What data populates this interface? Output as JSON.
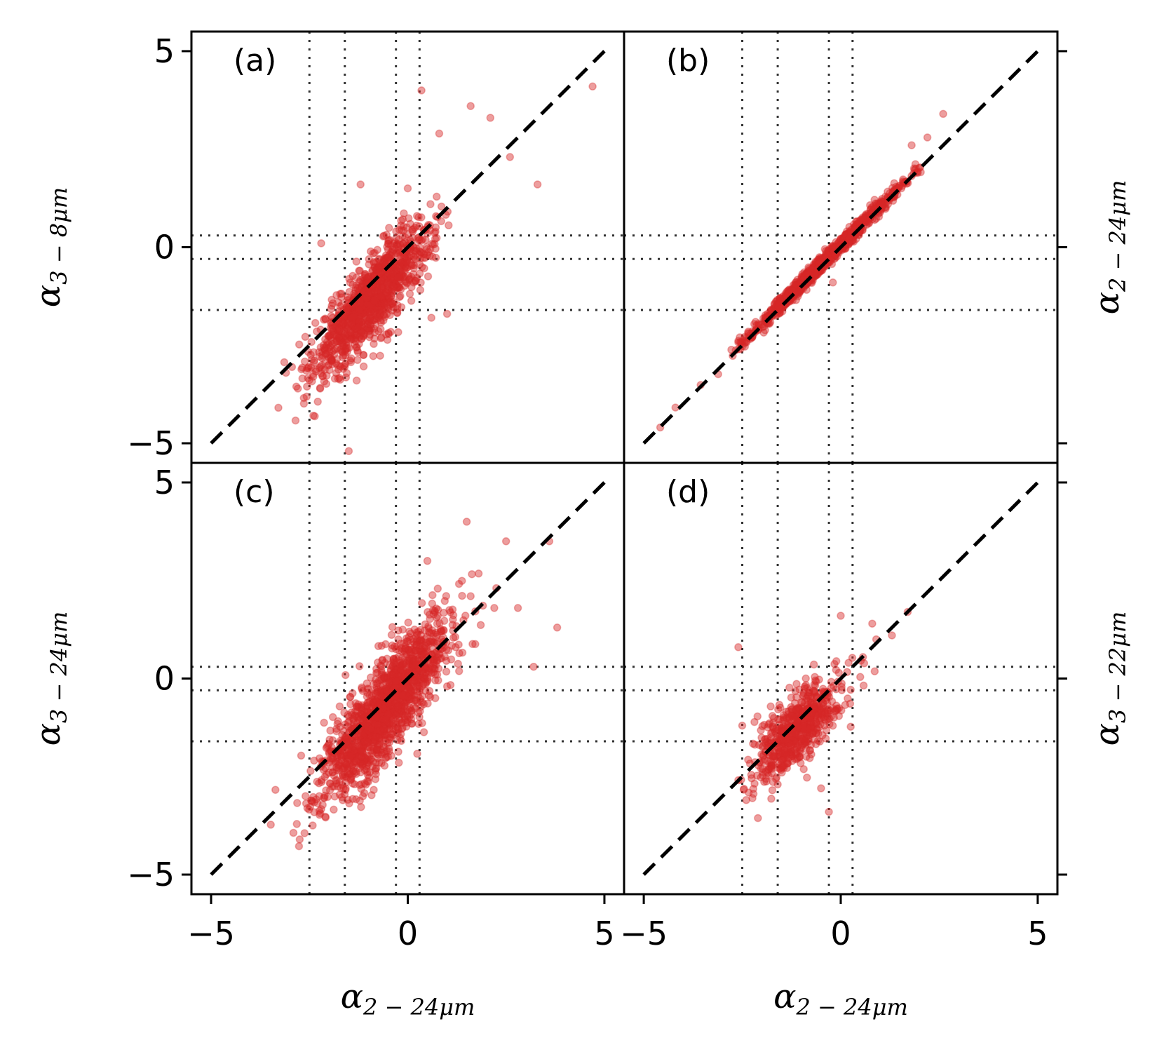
{
  "chart_data": [
    {
      "panel": "(a)",
      "type": "scatter",
      "xlabel": "",
      "ylabel": "α_{3−8μm}",
      "ylabel_base": "α",
      "ylabel_sub": "3 − 8μm",
      "ylabel_side": "left",
      "xlim": [
        -5.5,
        5.5
      ],
      "ylim": [
        -5.5,
        5.5
      ],
      "xticks": [
        -5,
        0,
        5
      ],
      "yticks": [
        -5,
        0,
        5
      ],
      "xticklabels_visible": false,
      "yticklabels_visible": true,
      "cluster": {
        "center": [
          -0.9,
          -1.3
        ],
        "spread": [
          0.75,
          0.95
        ],
        "corr": 0.85,
        "n": 1100
      },
      "points": [
        [
          4.7,
          4.1
        ],
        [
          0.35,
          4.0
        ],
        [
          1.6,
          3.6
        ],
        [
          2.1,
          3.3
        ],
        [
          2.6,
          2.3
        ],
        [
          3.3,
          1.6
        ],
        [
          -1.2,
          1.6
        ],
        [
          -2.2,
          0.1
        ],
        [
          -1.3,
          -3.4
        ],
        [
          -1.5,
          -5.2
        ],
        [
          -2.4,
          -3.3
        ],
        [
          1.0,
          -1.7
        ],
        [
          0.6,
          -1.8
        ],
        [
          0.0,
          1.5
        ],
        [
          0.8,
          2.9
        ]
      ]
    },
    {
      "panel": "(b)",
      "type": "scatter",
      "xlabel": "",
      "ylabel": "α_{2−24μm}",
      "ylabel_base": "α",
      "ylabel_sub": "2 − 24μm",
      "ylabel_side": "right",
      "xlim": [
        -5.5,
        5.5
      ],
      "ylim": [
        -5.5,
        5.5
      ],
      "xticks": [
        -5,
        0,
        5
      ],
      "yticks": [
        -5,
        0,
        5
      ],
      "xticklabels_visible": false,
      "yticklabels_visible": false,
      "cluster": {
        "center": [
          -0.4,
          -0.35
        ],
        "spread": [
          0.95,
          0.95
        ],
        "corr": 0.995,
        "n": 1100
      },
      "points": [
        [
          2.6,
          3.4
        ],
        [
          2.2,
          2.8
        ],
        [
          1.8,
          2.6
        ],
        [
          -2.4,
          -2.4
        ],
        [
          -2.1,
          -2.1
        ],
        [
          0.1,
          0.1
        ],
        [
          -0.2,
          -0.9
        ],
        [
          1.2,
          1.1
        ]
      ]
    },
    {
      "panel": "(c)",
      "type": "scatter",
      "xlabel": "α_{2−24μm}",
      "xlabel_base": "α",
      "xlabel_sub": "2 − 24μm",
      "ylabel": "α_{3−24μm}",
      "ylabel_base": "α",
      "ylabel_sub": "3 − 24μm",
      "ylabel_side": "left",
      "xlim": [
        -5.5,
        5.5
      ],
      "ylim": [
        -5.5,
        5.5
      ],
      "xticks": [
        -5,
        0,
        5
      ],
      "yticks": [
        -5,
        0,
        5
      ],
      "xtick_labels": [
        "−5",
        "0",
        "5"
      ],
      "ytick_labels": [
        "−5",
        "0",
        "5"
      ],
      "xticklabels_visible": true,
      "yticklabels_visible": true,
      "cluster": {
        "center": [
          -0.6,
          -0.8
        ],
        "spread": [
          0.85,
          1.15
        ],
        "corr": 0.84,
        "n": 1500
      },
      "points": [
        [
          1.5,
          4.0
        ],
        [
          2.5,
          3.5
        ],
        [
          3.6,
          3.5
        ],
        [
          3.8,
          1.3
        ],
        [
          3.2,
          0.3
        ],
        [
          2.8,
          1.8
        ],
        [
          -2.6,
          -3.0
        ],
        [
          0.5,
          3.0
        ],
        [
          1.0,
          -0.2
        ],
        [
          0.7,
          -0.5
        ],
        [
          2.2,
          1.8
        ]
      ]
    },
    {
      "panel": "(d)",
      "type": "scatter",
      "xlabel": "α_{2−24μm}",
      "xlabel_base": "α",
      "xlabel_sub": "2 − 24μm",
      "ylabel": "α_{3−22μm}",
      "ylabel_base": "α",
      "ylabel_sub": "3 − 22μm",
      "ylabel_side": "right",
      "xlim": [
        -5.5,
        5.5
      ],
      "ylim": [
        -5.5,
        5.5
      ],
      "xticks": [
        -5,
        0,
        5
      ],
      "yticks": [
        -5,
        0,
        5
      ],
      "xtick_labels": [
        "−5",
        "0",
        "5"
      ],
      "xticklabels_visible": true,
      "yticklabels_visible": false,
      "cluster": {
        "center": [
          -1.1,
          -1.3
        ],
        "spread": [
          0.55,
          0.65
        ],
        "corr": 0.72,
        "n": 650
      },
      "points": [
        [
          -2.6,
          0.8
        ],
        [
          -2.5,
          -1.2
        ],
        [
          -2.4,
          -3.1
        ],
        [
          -0.3,
          -3.4
        ],
        [
          -0.5,
          -2.8
        ],
        [
          -1.6,
          -2.7
        ],
        [
          0.0,
          1.6
        ],
        [
          0.8,
          1.4
        ],
        [
          1.3,
          1.1
        ],
        [
          1.7,
          1.7
        ],
        [
          0.9,
          1.0
        ],
        [
          0.2,
          0.4
        ]
      ]
    }
  ],
  "shared": {
    "identity_line": {
      "from": [
        -5,
        -5
      ],
      "to": [
        5,
        5
      ],
      "style": "dashed",
      "color": "#000000"
    },
    "vertical_dotted_lines_x": [
      -2.5,
      -1.6,
      -0.3,
      0.3
    ],
    "horizontal_dotted_lines_y": [
      0.3,
      -0.3,
      -1.6
    ],
    "point_color": "#d62728",
    "point_alpha": 0.45,
    "gridline_color": "#333333"
  }
}
